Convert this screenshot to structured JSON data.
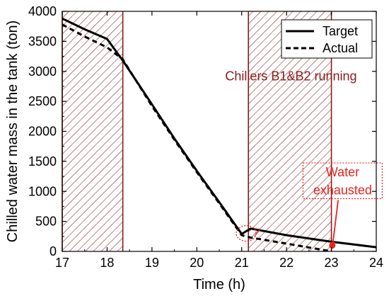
{
  "chart_data": {
    "type": "line",
    "xlabel": "Time (h)",
    "ylabel": "Chilled water mass in the tank (ton)",
    "xlim": [
      17,
      24
    ],
    "ylim": [
      0,
      4000
    ],
    "xticks": [
      "17",
      "18",
      "19",
      "20",
      "21",
      "22",
      "23",
      "24"
    ],
    "yticks": [
      "0",
      "500",
      "1000",
      "1500",
      "2000",
      "2500",
      "3000",
      "3500",
      "4000"
    ],
    "grid": false,
    "legend_position": "top-right",
    "series": [
      {
        "name": "Target",
        "style": "solid",
        "color": "#000000",
        "x": [
          17.0,
          17.5,
          18.0,
          18.35,
          19.0,
          19.5,
          20.0,
          20.5,
          21.0,
          21.2,
          22.0,
          23.0,
          24.0
        ],
        "y": [
          3880,
          3700,
          3540,
          3180,
          2450,
          1880,
          1340,
          820,
          290,
          380,
          270,
          160,
          70
        ]
      },
      {
        "name": "Actual",
        "style": "dashed",
        "color": "#000000",
        "x": [
          17.0,
          17.5,
          18.0,
          18.35,
          19.0,
          19.5,
          20.0,
          20.5,
          21.0,
          21.2,
          22.0,
          23.0
        ],
        "y": [
          3780,
          3580,
          3400,
          3200,
          2420,
          1860,
          1320,
          800,
          270,
          230,
          130,
          0
        ]
      }
    ],
    "shaded_regions": [
      {
        "x_start": 17.0,
        "x_end": 18.35
      },
      {
        "x_start": 21.15,
        "x_end": 23.0
      }
    ],
    "shade_color": "#8b1a1a",
    "annotations": [
      {
        "text": "Chillers B1&B2 running",
        "color": "#8b1a1a",
        "x": 22.1,
        "y": 2850
      },
      {
        "text": "Water",
        "color": "#e8241c",
        "x": 23.25,
        "y": 1250
      },
      {
        "text": "exhausted",
        "color": "#e8241c",
        "x": 23.25,
        "y": 950
      }
    ],
    "marker_color": "#e8241c"
  }
}
